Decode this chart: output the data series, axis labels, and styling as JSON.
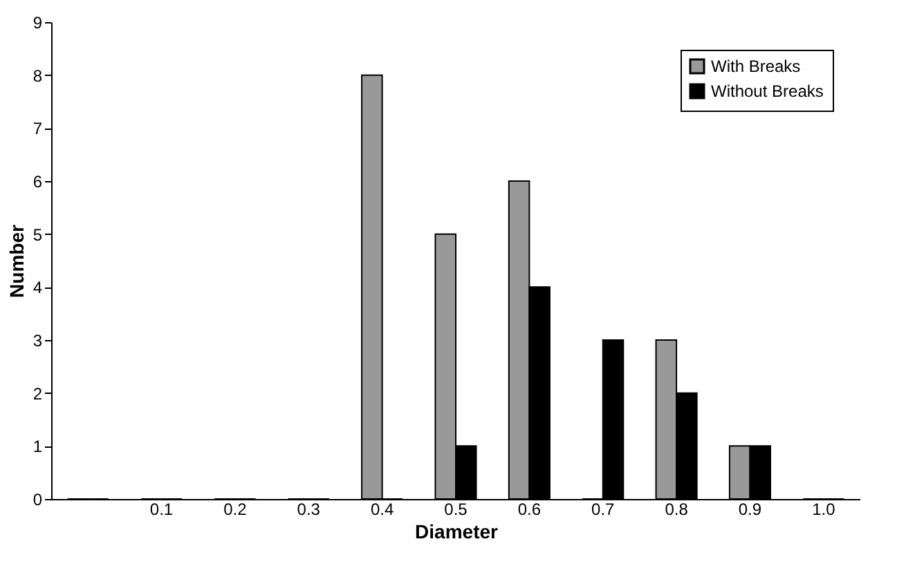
{
  "chart_data": {
    "type": "bar",
    "xlabel": "Diameter",
    "ylabel": "Number",
    "categories": [
      null,
      "0.1",
      "0.2",
      "0.3",
      "0.4",
      "0.5",
      "0.6",
      "0.7",
      "0.8",
      "0.9",
      "1.0"
    ],
    "series": [
      {
        "name": "With Breaks",
        "color": "#999999",
        "values": [
          0,
          0,
          0,
          0,
          8,
          5,
          6,
          0,
          3,
          1,
          0
        ]
      },
      {
        "name": "Without Breaks",
        "color": "#000000",
        "values": [
          0,
          0,
          0,
          0,
          0,
          1,
          4,
          3,
          2,
          1,
          0
        ]
      }
    ],
    "ylim": [
      0,
      9
    ],
    "yticks": [
      0,
      1,
      2,
      3,
      4,
      5,
      6,
      7,
      8,
      9
    ],
    "grid": false,
    "legend": "top right"
  }
}
